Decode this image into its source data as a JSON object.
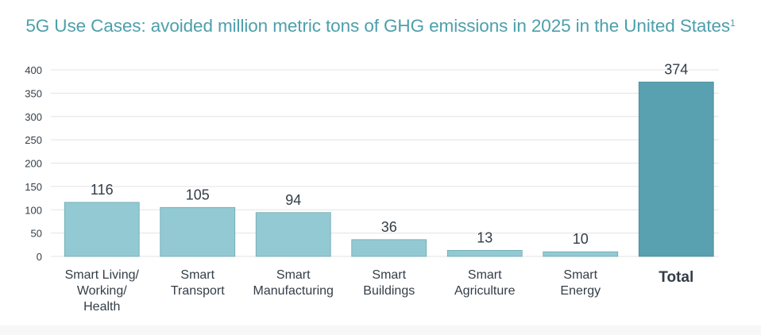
{
  "title": "5G Use Cases: avoided million metric tons of GHG emissions in 2025 in the United States",
  "title_footnote": "1",
  "colors": {
    "title": "#4d9fab",
    "bar": "#92c9d2",
    "bar_border": "#6fa9b4",
    "total_bar": "#59a0b0",
    "total_border": "#4a8a9a",
    "grid": "#e3e3e3",
    "text": "#333d47"
  },
  "chart_data": {
    "type": "bar",
    "categories": [
      [
        "Smart Living/",
        "Working/",
        "Health"
      ],
      [
        "Smart",
        "Transport"
      ],
      [
        "Smart",
        "Manufacturing"
      ],
      [
        "Smart",
        "Buildings"
      ],
      [
        "Smart",
        "Agriculture"
      ],
      [
        "Smart",
        "Energy"
      ],
      [
        "Total"
      ]
    ],
    "values": [
      116,
      105,
      94,
      36,
      13,
      10,
      374
    ],
    "data_labels": [
      "116",
      "105",
      "94",
      "36",
      "13",
      "10",
      "374"
    ],
    "highlight_index": 6,
    "ylim": [
      0,
      400
    ],
    "yticks": [
      0,
      50,
      100,
      150,
      200,
      250,
      300,
      350,
      400
    ],
    "grid": true,
    "xlabel": "",
    "ylabel": ""
  }
}
